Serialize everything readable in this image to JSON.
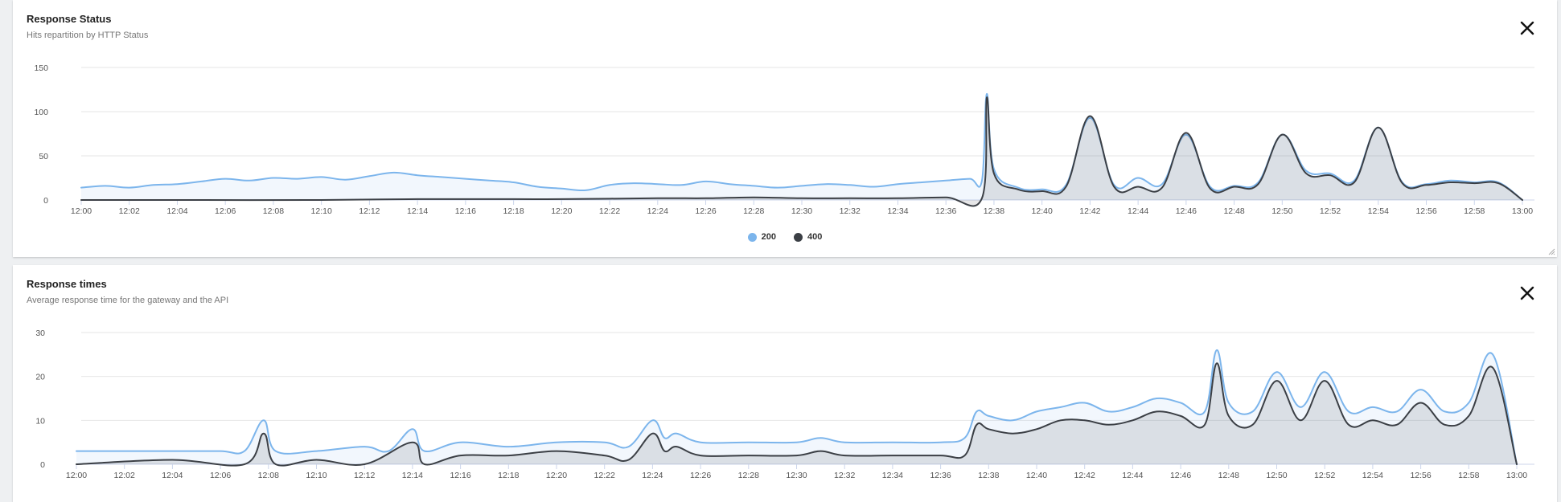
{
  "charts": [
    {
      "title": "Response Status",
      "subtitle": "Hits repartition by HTTP Status",
      "close_label": "close"
    },
    {
      "title": "Response times",
      "subtitle": "Average response time for the gateway and the API",
      "close_label": "close"
    }
  ],
  "chart_data": [
    {
      "type": "area",
      "title": "Response Status",
      "subtitle": "Hits repartition by HTTP Status",
      "xlabel": "",
      "ylabel": "",
      "x_range": [
        "12:00",
        "13:00"
      ],
      "x_ticks": [
        "12:00",
        "12:02",
        "12:04",
        "12:06",
        "12:08",
        "12:10",
        "12:12",
        "12:14",
        "12:16",
        "12:18",
        "12:20",
        "12:22",
        "12:24",
        "12:26",
        "12:28",
        "12:30",
        "12:32",
        "12:34",
        "12:36",
        "12:38",
        "12:40",
        "12:42",
        "12:44",
        "12:46",
        "12:48",
        "12:50",
        "12:52",
        "12:54",
        "12:56",
        "12:58",
        "13:00"
      ],
      "ylim": [
        0,
        150
      ],
      "y_ticks": [
        0,
        50,
        100,
        150
      ],
      "grid": true,
      "legend_position": "bottom-center",
      "series": [
        {
          "name": "200",
          "color": "#7cb5ec",
          "points": [
            [
              "12:00",
              14
            ],
            [
              "12:01",
              16
            ],
            [
              "12:02",
              14
            ],
            [
              "12:03",
              17
            ],
            [
              "12:04",
              18
            ],
            [
              "12:05",
              21
            ],
            [
              "12:06",
              24
            ],
            [
              "12:07",
              22
            ],
            [
              "12:08",
              25
            ],
            [
              "12:09",
              24
            ],
            [
              "12:10",
              26
            ],
            [
              "12:11",
              23
            ],
            [
              "12:12",
              27
            ],
            [
              "12:13",
              31
            ],
            [
              "12:14",
              28
            ],
            [
              "12:15",
              26
            ],
            [
              "12:16",
              24
            ],
            [
              "12:17",
              22
            ],
            [
              "12:18",
              20
            ],
            [
              "12:19",
              15
            ],
            [
              "12:20",
              13
            ],
            [
              "12:21",
              11
            ],
            [
              "12:22",
              17
            ],
            [
              "12:23",
              19
            ],
            [
              "12:24",
              18
            ],
            [
              "12:25",
              17
            ],
            [
              "12:26",
              21
            ],
            [
              "12:27",
              18
            ],
            [
              "12:28",
              16
            ],
            [
              "12:29",
              14
            ],
            [
              "12:30",
              16
            ],
            [
              "12:31",
              18
            ],
            [
              "12:32",
              17
            ],
            [
              "12:33",
              15
            ],
            [
              "12:34",
              18
            ],
            [
              "12:35",
              20
            ],
            [
              "12:36",
              22
            ],
            [
              "12:37",
              24
            ],
            [
              "12:37.5",
              22
            ],
            [
              "12:37.7",
              120
            ],
            [
              "12:38",
              35
            ],
            [
              "12:39",
              14
            ],
            [
              "12:40",
              12
            ],
            [
              "12:41",
              17
            ],
            [
              "12:42",
              93
            ],
            [
              "12:43",
              17
            ],
            [
              "12:44",
              25
            ],
            [
              "12:45",
              18
            ],
            [
              "12:46",
              74
            ],
            [
              "12:47",
              15
            ],
            [
              "12:48",
              16
            ],
            [
              "12:49",
              20
            ],
            [
              "12:50",
              74
            ],
            [
              "12:51",
              33
            ],
            [
              "12:52",
              30
            ],
            [
              "12:53",
              22
            ],
            [
              "12:54",
              82
            ],
            [
              "12:55",
              20
            ],
            [
              "12:56",
              18
            ],
            [
              "12:57",
              22
            ],
            [
              "12:58",
              20
            ],
            [
              "12:59",
              20
            ],
            [
              "13:00",
              0
            ]
          ]
        },
        {
          "name": "400",
          "color": "#3b3f45",
          "points": [
            [
              "12:00",
              0
            ],
            [
              "12:04",
              0
            ],
            [
              "12:10",
              0
            ],
            [
              "12:14",
              1
            ],
            [
              "12:18",
              1
            ],
            [
              "12:20",
              1
            ],
            [
              "12:24",
              2
            ],
            [
              "12:26",
              2
            ],
            [
              "12:28",
              3
            ],
            [
              "12:30",
              2
            ],
            [
              "12:32",
              2
            ],
            [
              "12:34",
              2
            ],
            [
              "12:36",
              3
            ],
            [
              "12:37.5",
              2
            ],
            [
              "12:37.7",
              116
            ],
            [
              "12:38",
              30
            ],
            [
              "12:39",
              12
            ],
            [
              "12:40",
              10
            ],
            [
              "12:41",
              15
            ],
            [
              "12:42",
              95
            ],
            [
              "12:43",
              15
            ],
            [
              "12:44",
              15
            ],
            [
              "12:45",
              14
            ],
            [
              "12:46",
              76
            ],
            [
              "12:47",
              13
            ],
            [
              "12:48",
              15
            ],
            [
              "12:49",
              18
            ],
            [
              "12:50",
              74
            ],
            [
              "12:51",
              30
            ],
            [
              "12:52",
              28
            ],
            [
              "12:53",
              20
            ],
            [
              "12:54",
              82
            ],
            [
              "12:55",
              19
            ],
            [
              "12:56",
              17
            ],
            [
              "12:57",
              20
            ],
            [
              "12:58",
              19
            ],
            [
              "12:59",
              19
            ],
            [
              "13:00",
              0
            ]
          ]
        }
      ],
      "legend": [
        {
          "label": "200",
          "color": "#7cb5ec"
        },
        {
          "label": "400",
          "color": "#3b3f45"
        }
      ]
    },
    {
      "type": "area",
      "title": "Response times",
      "subtitle": "Average response time for the gateway and the API",
      "xlabel": "",
      "ylabel": "",
      "x_range": [
        "12:00",
        "13:00"
      ],
      "x_ticks": [
        "12:00",
        "12:02",
        "12:04",
        "12:06",
        "12:08",
        "12:10",
        "12:12",
        "12:14",
        "12:16",
        "12:18",
        "12:20",
        "12:22",
        "12:24",
        "12:26",
        "12:28",
        "12:30",
        "12:32",
        "12:34",
        "12:36",
        "12:38",
        "12:40",
        "12:42",
        "12:44",
        "12:46",
        "12:48",
        "12:50",
        "12:52",
        "12:54",
        "12:56",
        "12:58",
        "13:00"
      ],
      "ylim": [
        0,
        30
      ],
      "y_ticks": [
        0,
        10,
        20,
        30
      ],
      "grid": true,
      "series": [
        {
          "color": "#7cb5ec",
          "points": [
            [
              "12:00",
              3
            ],
            [
              "12:02",
              3
            ],
            [
              "12:04",
              3
            ],
            [
              "12:06",
              3
            ],
            [
              "12:07",
              3
            ],
            [
              "12:07.8",
              10
            ],
            [
              "12:08.3",
              3
            ],
            [
              "12:10",
              3
            ],
            [
              "12:12",
              4
            ],
            [
              "12:13",
              3
            ],
            [
              "12:14",
              8
            ],
            [
              "12:14.5",
              3
            ],
            [
              "12:16",
              5
            ],
            [
              "12:18",
              4
            ],
            [
              "12:20",
              5
            ],
            [
              "12:22",
              5
            ],
            [
              "12:23",
              4
            ],
            [
              "12:24",
              10
            ],
            [
              "12:24.5",
              6
            ],
            [
              "12:25",
              7
            ],
            [
              "12:26",
              5
            ],
            [
              "12:28",
              5
            ],
            [
              "12:30",
              5
            ],
            [
              "12:31",
              6
            ],
            [
              "12:32",
              5
            ],
            [
              "12:34",
              5
            ],
            [
              "12:36",
              5
            ],
            [
              "12:37",
              6
            ],
            [
              "12:37.5",
              12
            ],
            [
              "12:38",
              11
            ],
            [
              "12:39",
              10
            ],
            [
              "12:40",
              12
            ],
            [
              "12:41",
              13
            ],
            [
              "12:42",
              14
            ],
            [
              "12:43",
              12
            ],
            [
              "12:44",
              13
            ],
            [
              "12:45",
              15
            ],
            [
              "12:46",
              14
            ],
            [
              "12:47",
              12
            ],
            [
              "12:47.5",
              26
            ],
            [
              "12:48",
              14
            ],
            [
              "12:49",
              12
            ],
            [
              "12:50",
              21
            ],
            [
              "12:51",
              13
            ],
            [
              "12:52",
              21
            ],
            [
              "12:53",
              12
            ],
            [
              "12:54",
              13
            ],
            [
              "12:55",
              12
            ],
            [
              "12:56",
              17
            ],
            [
              "12:57",
              12
            ],
            [
              "12:58",
              14
            ],
            [
              "12:59",
              25
            ],
            [
              "13:00",
              0
            ]
          ]
        },
        {
          "color": "#3b3f45",
          "points": [
            [
              "12:00",
              0
            ],
            [
              "12:04",
              1
            ],
            [
              "12:07",
              0
            ],
            [
              "12:07.8",
              7
            ],
            [
              "12:08.3",
              0
            ],
            [
              "12:10",
              1
            ],
            [
              "12:12",
              0
            ],
            [
              "12:14",
              5
            ],
            [
              "12:14.5",
              0
            ],
            [
              "12:16",
              2
            ],
            [
              "12:18",
              2
            ],
            [
              "12:20",
              3
            ],
            [
              "12:22",
              2
            ],
            [
              "12:23",
              1
            ],
            [
              "12:24",
              7
            ],
            [
              "12:24.5",
              3
            ],
            [
              "12:25",
              4
            ],
            [
              "12:26",
              2
            ],
            [
              "12:28",
              2
            ],
            [
              "12:30",
              2
            ],
            [
              "12:31",
              3
            ],
            [
              "12:32",
              2
            ],
            [
              "12:34",
              2
            ],
            [
              "12:36",
              2
            ],
            [
              "12:37",
              2
            ],
            [
              "12:37.5",
              9
            ],
            [
              "12:38",
              8
            ],
            [
              "12:39",
              7
            ],
            [
              "12:40",
              8
            ],
            [
              "12:41",
              10
            ],
            [
              "12:42",
              10
            ],
            [
              "12:43",
              9
            ],
            [
              "12:44",
              10
            ],
            [
              "12:45",
              12
            ],
            [
              "12:46",
              11
            ],
            [
              "12:47",
              9
            ],
            [
              "12:47.5",
              23
            ],
            [
              "12:48",
              11
            ],
            [
              "12:49",
              9
            ],
            [
              "12:50",
              19
            ],
            [
              "12:51",
              10
            ],
            [
              "12:52",
              19
            ],
            [
              "12:53",
              9
            ],
            [
              "12:54",
              10
            ],
            [
              "12:55",
              9
            ],
            [
              "12:56",
              14
            ],
            [
              "12:57",
              9
            ],
            [
              "12:58",
              11
            ],
            [
              "12:59",
              22
            ],
            [
              "13:00",
              0
            ]
          ]
        }
      ]
    }
  ]
}
